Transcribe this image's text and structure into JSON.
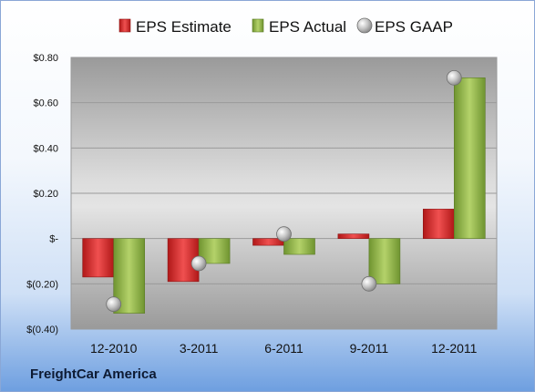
{
  "footer": {
    "company": "FreightCar America"
  },
  "chart_data": {
    "type": "bar",
    "title": "",
    "xlabel": "",
    "ylabel": "",
    "categories": [
      "12-2010",
      "3-2011",
      "6-2011",
      "9-2011",
      "12-2011"
    ],
    "series": [
      {
        "name": "EPS Estimate",
        "kind": "bar",
        "color": "#d43030",
        "values": [
          -0.17,
          -0.19,
          -0.03,
          0.02,
          0.13
        ]
      },
      {
        "name": "EPS Actual",
        "kind": "bar",
        "color": "#8fb548",
        "values": [
          -0.33,
          -0.11,
          -0.07,
          -0.2,
          0.71
        ]
      },
      {
        "name": "EPS GAAP",
        "kind": "marker",
        "color": "#a0a0a0",
        "values": [
          -0.29,
          -0.11,
          0.02,
          -0.2,
          0.71
        ]
      }
    ],
    "ylim": [
      -0.4,
      0.8
    ],
    "yticks": [
      0.8,
      0.6,
      0.4,
      0.2,
      0,
      -0.2,
      -0.4
    ],
    "ytick_labels": [
      "$0.80",
      "$0.60",
      "$0.40",
      "$0.20",
      "$-",
      "$(0.20)",
      "$(0.40)"
    ],
    "grid": true,
    "legend_position": "top"
  }
}
